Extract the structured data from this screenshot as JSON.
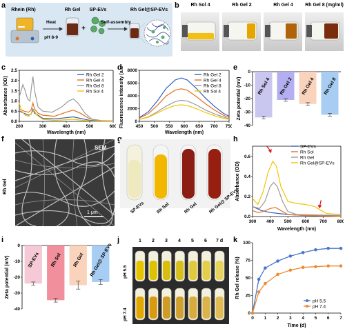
{
  "panel_letters": [
    "a",
    "b",
    "c",
    "d",
    "e",
    "f",
    "g",
    "h",
    "i",
    "j",
    "k"
  ],
  "panel_a": {
    "labels": {
      "rhein": "Rhein (Rh)",
      "rh_gel": "Rh Gel",
      "sp_evs": "SP-EVs",
      "rh_gel_sp": "Rh Gel@SP-EVs"
    },
    "steps": {
      "heat": "Heat",
      "ph": "pH 8-9",
      "self_assembly": "Self-assembly"
    },
    "colors": {
      "panel_bg": "#d9e7f3",
      "gel": "#6b2a14",
      "ev": "#4f9a5a"
    }
  },
  "panel_b": {
    "labels": [
      "Rh Sol 4",
      "Rh Gel 2",
      "Rh Gel 4",
      "Rh Gel 8 (mg/ml)"
    ]
  },
  "panel_f": {
    "sem_label": "SEM",
    "scale": "1 μm",
    "side_label": "Rh Gel"
  },
  "panel_g": {
    "labels": [
      "SP-EVs",
      "Rh Sol",
      "Rh Gel",
      "Rh Gel@ SP-EVs"
    ]
  },
  "panel_j": {
    "days": [
      "1",
      "2",
      "3",
      "4",
      "5",
      "6",
      "7 d"
    ],
    "rows": [
      "pH 5.5",
      "pH 7.4"
    ]
  },
  "chart_data": [
    {
      "id": "c",
      "type": "line",
      "xlabel": "Wavelength (nm)",
      "ylabel": "Absorbance (OD)",
      "xlim": [
        200,
        600
      ],
      "ylim": [
        0,
        2.5
      ],
      "xticks": [
        200,
        300,
        400,
        500,
        600
      ],
      "yticks": [
        0.0,
        0.5,
        1.0,
        1.5,
        2.0,
        2.5
      ],
      "legend": "top-right",
      "series": [
        {
          "name": "Rh Gel 2",
          "color": "#2e5fbd",
          "points": [
            [
              200,
              0.5
            ],
            [
              220,
              0.4
            ],
            [
              240,
              0.3
            ],
            [
              250,
              0.35
            ],
            [
              258,
              0.6
            ],
            [
              265,
              0.4
            ],
            [
              280,
              0.3
            ],
            [
              300,
              0.15
            ],
            [
              350,
              0.12
            ],
            [
              400,
              0.18
            ],
            [
              430,
              0.22
            ],
            [
              460,
              0.15
            ],
            [
              500,
              0.05
            ],
            [
              550,
              0.02
            ],
            [
              600,
              0.01
            ]
          ]
        },
        {
          "name": "Rh Gel 4",
          "color": "#e8701f",
          "points": [
            [
              200,
              0.6
            ],
            [
              220,
              0.5
            ],
            [
              240,
              0.45
            ],
            [
              250,
              0.55
            ],
            [
              258,
              0.9
            ],
            [
              265,
              0.6
            ],
            [
              280,
              0.4
            ],
            [
              300,
              0.3
            ],
            [
              350,
              0.25
            ],
            [
              400,
              0.45
            ],
            [
              430,
              0.55
            ],
            [
              460,
              0.4
            ],
            [
              500,
              0.12
            ],
            [
              550,
              0.04
            ],
            [
              600,
              0.02
            ]
          ]
        },
        {
          "name": "Rh Gel 8",
          "color": "#9a9a9a",
          "points": [
            [
              200,
              1.2
            ],
            [
              215,
              1.8
            ],
            [
              225,
              1.5
            ],
            [
              235,
              1.1
            ],
            [
              245,
              1.0
            ],
            [
              252,
              1.7
            ],
            [
              258,
              2.2
            ],
            [
              265,
              1.5
            ],
            [
              280,
              0.7
            ],
            [
              300,
              0.5
            ],
            [
              340,
              0.45
            ],
            [
              380,
              0.7
            ],
            [
              410,
              1.0
            ],
            [
              430,
              1.1
            ],
            [
              450,
              0.9
            ],
            [
              480,
              0.4
            ],
            [
              510,
              0.1
            ],
            [
              550,
              0.03
            ],
            [
              600,
              0.02
            ]
          ]
        },
        {
          "name": "Rh Sol 4",
          "color": "#f2c500",
          "points": [
            [
              200,
              0.9
            ],
            [
              210,
              0.5
            ],
            [
              225,
              0.3
            ],
            [
              240,
              0.25
            ],
            [
              255,
              0.45
            ],
            [
              262,
              0.55
            ],
            [
              275,
              0.3
            ],
            [
              300,
              0.1
            ],
            [
              350,
              0.05
            ],
            [
              400,
              0.08
            ],
            [
              430,
              0.1
            ],
            [
              470,
              0.05
            ],
            [
              500,
              0.02
            ],
            [
              600,
              0.01
            ]
          ]
        }
      ]
    },
    {
      "id": "d",
      "type": "line",
      "xlabel": "Wavelength (nm)",
      "ylabel": "Fluorescence intensity (a.u.)",
      "xlim": [
        450,
        750
      ],
      "ylim": [
        0,
        8000
      ],
      "xticks": [
        450,
        500,
        550,
        600,
        650,
        700,
        750
      ],
      "yticks": [
        0,
        2000,
        4000,
        6000,
        8000
      ],
      "legend": "top-right",
      "series": [
        {
          "name": "Rh Gel 2",
          "color": "#2e5fbd",
          "points": [
            [
              450,
              600
            ],
            [
              480,
              1500
            ],
            [
              510,
              3200
            ],
            [
              540,
              5200
            ],
            [
              570,
              6500
            ],
            [
              590,
              6800
            ],
            [
              610,
              6500
            ],
            [
              640,
              5200
            ],
            [
              670,
              3700
            ],
            [
              700,
              2400
            ],
            [
              730,
              1300
            ],
            [
              750,
              800
            ]
          ]
        },
        {
          "name": "Rh Gel 4",
          "color": "#e8701f",
          "points": [
            [
              450,
              500
            ],
            [
              480,
              1200
            ],
            [
              510,
              2500
            ],
            [
              540,
              4000
            ],
            [
              570,
              4900
            ],
            [
              590,
              5100
            ],
            [
              610,
              4900
            ],
            [
              640,
              3900
            ],
            [
              670,
              2800
            ],
            [
              700,
              1800
            ],
            [
              730,
              1000
            ],
            [
              750,
              600
            ]
          ]
        },
        {
          "name": "Rh Gel 8",
          "color": "#9a9a9a",
          "points": [
            [
              450,
              300
            ],
            [
              480,
              700
            ],
            [
              510,
              1500
            ],
            [
              540,
              2400
            ],
            [
              570,
              3100
            ],
            [
              590,
              3300
            ],
            [
              610,
              3200
            ],
            [
              640,
              2600
            ],
            [
              670,
              1800
            ],
            [
              700,
              1200
            ],
            [
              730,
              700
            ],
            [
              750,
              400
            ]
          ]
        },
        {
          "name": "Rh Sol 4",
          "color": "#f2c500",
          "points": [
            [
              450,
              300
            ],
            [
              480,
              650
            ],
            [
              510,
              1300
            ],
            [
              540,
              2000
            ],
            [
              570,
              2500
            ],
            [
              590,
              2600
            ],
            [
              610,
              2500
            ],
            [
              640,
              2000
            ],
            [
              670,
              1400
            ],
            [
              700,
              900
            ],
            [
              730,
              500
            ],
            [
              750,
              300
            ]
          ]
        }
      ]
    },
    {
      "id": "e",
      "type": "bar",
      "ylabel": "Zeta potential (mV)",
      "ylim": [
        -40,
        0
      ],
      "yticks": [
        0,
        -10,
        -20,
        -30,
        -40
      ],
      "categories": [
        "Rh Sol 4",
        "Rh Gel 2",
        "Rh Gel 4",
        "Rh Gel 8"
      ],
      "values": [
        -34,
        -21,
        -24,
        -32
      ],
      "errors": [
        1,
        1,
        1,
        1
      ],
      "colors": [
        "#c9c6ef",
        "#b4aff0",
        "#f9d3bc",
        "#a8cdf3"
      ]
    },
    {
      "id": "h",
      "type": "line",
      "xlabel": "Wavelength (nm)",
      "ylabel": "Absorbance (OD)",
      "xlim": [
        300,
        800
      ],
      "ylim": [
        0,
        0.7
      ],
      "xticks": [
        300,
        400,
        500,
        600,
        700,
        800
      ],
      "yticks": [
        0.0,
        0.2,
        0.4,
        0.6
      ],
      "legend": "top-right",
      "series": [
        {
          "name": "SP-EVs",
          "color": "#2e5fbd",
          "points": [
            [
              300,
              0.1
            ],
            [
              350,
              0.06
            ],
            [
              400,
              0.04
            ],
            [
              450,
              0.03
            ],
            [
              500,
              0.02
            ],
            [
              600,
              0.01
            ],
            [
              700,
              0.01
            ],
            [
              800,
              0.01
            ]
          ]
        },
        {
          "name": "Rh Sol",
          "color": "#e8701f",
          "points": [
            [
              300,
              0.06
            ],
            [
              330,
              0.04
            ],
            [
              360,
              0.05
            ],
            [
              400,
              0.08
            ],
            [
              430,
              0.09
            ],
            [
              460,
              0.06
            ],
            [
              500,
              0.02
            ],
            [
              600,
              0.01
            ],
            [
              800,
              0.0
            ]
          ]
        },
        {
          "name": "Rh Gel",
          "color": "#9a9a9a",
          "points": [
            [
              300,
              0.1
            ],
            [
              340,
              0.08
            ],
            [
              370,
              0.15
            ],
            [
              400,
              0.3
            ],
            [
              420,
              0.34
            ],
            [
              440,
              0.3
            ],
            [
              470,
              0.15
            ],
            [
              500,
              0.05
            ],
            [
              550,
              0.02
            ],
            [
              800,
              0.01
            ]
          ]
        },
        {
          "name": "Rh Gel@SP-EVs",
          "color": "#f2c500",
          "points": [
            [
              300,
              0.18
            ],
            [
              330,
              0.12
            ],
            [
              360,
              0.25
            ],
            [
              390,
              0.45
            ],
            [
              415,
              0.55
            ],
            [
              435,
              0.5
            ],
            [
              460,
              0.3
            ],
            [
              500,
              0.15
            ],
            [
              550,
              0.13
            ],
            [
              600,
              0.12
            ],
            [
              650,
              0.1
            ],
            [
              690,
              0.06
            ],
            [
              720,
              0.03
            ],
            [
              800,
              0.02
            ]
          ]
        }
      ]
    },
    {
      "id": "i",
      "type": "bar",
      "ylabel": "Zeta potential (mV)",
      "ylim": [
        -40,
        0
      ],
      "yticks": [
        0,
        -10,
        -20,
        -30,
        -40
      ],
      "categories": [
        "SP-EVs",
        "Rh Sol",
        "Rh Gel",
        "Rh Gel@ SP-EVs"
      ],
      "values": [
        -24,
        -34.5,
        -25,
        -23
      ],
      "errors": [
        1,
        1.2,
        2.5,
        1.5
      ],
      "colors": [
        "#f6c9d6",
        "#f28f9c",
        "#f9d3bc",
        "#a8cdf3"
      ]
    },
    {
      "id": "k",
      "type": "line",
      "xlabel": "Time (d)",
      "ylabel": "Rh Gel release (%)",
      "xlim": [
        0,
        7
      ],
      "ylim": [
        0,
        100
      ],
      "xticks": [
        0,
        1,
        2,
        3,
        4,
        5,
        6,
        7
      ],
      "yticks": [
        0,
        25,
        50,
        75,
        100
      ],
      "legend": "bottom-right",
      "series": [
        {
          "name": "pH 5.5",
          "color": "#4a78c9",
          "points": [
            [
              0,
              0
            ],
            [
              0.5,
              48
            ],
            [
              1,
              64
            ],
            [
              2,
              74
            ],
            [
              3,
              81
            ],
            [
              4,
              86
            ],
            [
              5,
              90
            ],
            [
              6,
              92
            ],
            [
              7,
              92
            ]
          ]
        },
        {
          "name": "pH 7.4",
          "color": "#ee8a32",
          "points": [
            [
              0,
              0
            ],
            [
              0.5,
              30
            ],
            [
              1,
              42
            ],
            [
              2,
              55
            ],
            [
              3,
              61
            ],
            [
              4,
              65
            ],
            [
              5,
              66
            ],
            [
              6,
              67
            ],
            [
              7,
              67
            ]
          ]
        }
      ]
    }
  ]
}
